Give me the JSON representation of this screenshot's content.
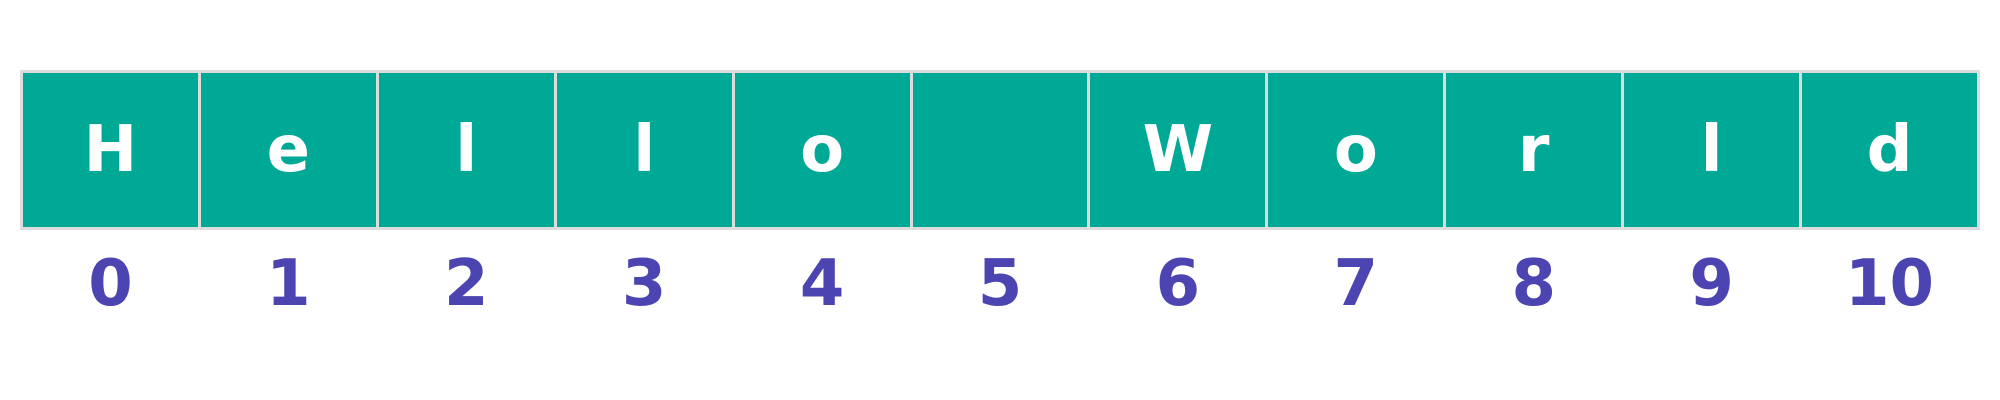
{
  "colors": {
    "cell_fill": "#00a896",
    "cell_text": "#ffffff",
    "cell_border": "#dcdcdc",
    "index_text": "#4c45b1"
  },
  "array": {
    "cells": [
      "H",
      "e",
      "l",
      "l",
      "o",
      " ",
      "W",
      "o",
      "r",
      "l",
      "d"
    ],
    "indices": [
      "0",
      "1",
      "2",
      "3",
      "4",
      "5",
      "6",
      "7",
      "8",
      "9",
      "10"
    ]
  }
}
